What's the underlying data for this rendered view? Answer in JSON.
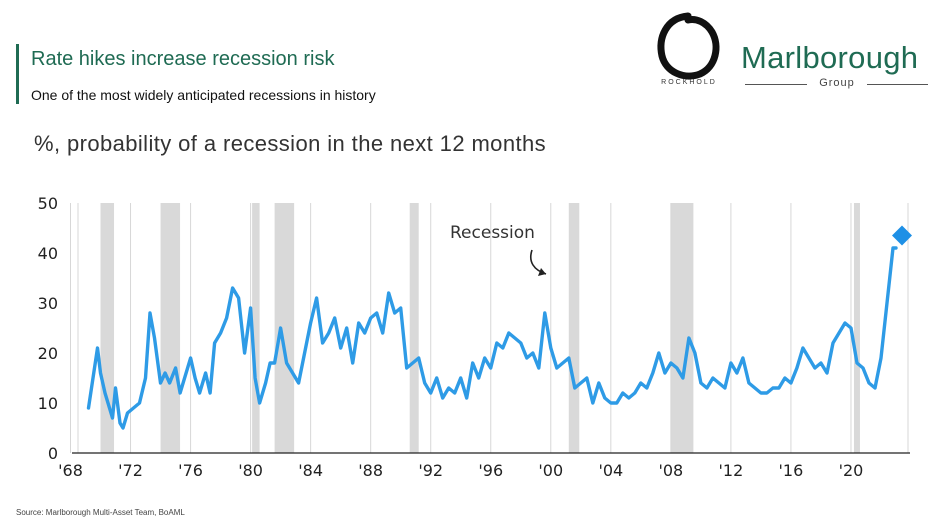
{
  "header": {
    "title": "Rate hikes increase recession risk",
    "subtitle": "One of the most widely anticipated recessions in history"
  },
  "logos": {
    "rockhold": "ROCKHOLD",
    "marlborough": "Marlborough",
    "marlborough_sub": "Group"
  },
  "source": "Source: Marlborough Multi-Asset Team, BoAML",
  "colors": {
    "line": "#2e9be6",
    "marker": "#1e90e6",
    "recession_band": "#d9d9d9",
    "brand_green": "#1f6b53"
  },
  "chart_data": {
    "type": "line",
    "title": "%, probability of a recession in the next 12 months",
    "xlabel": "",
    "ylabel": "",
    "xlim": [
      1968.5,
      2023.8
    ],
    "ylim": [
      0,
      50
    ],
    "yticks": [
      0,
      10,
      20,
      30,
      40,
      50
    ],
    "ytick_labels": [
      "0",
      "10",
      "20",
      "30",
      "40",
      "50"
    ],
    "xticks": [
      1968,
      1972,
      1976,
      1980,
      1984,
      1988,
      1992,
      1996,
      2000,
      2004,
      2008,
      2012,
      2016,
      2020
    ],
    "xtick_labels": [
      "'68",
      "'72",
      "'76",
      "'80",
      "'84",
      "'88",
      "'92",
      "'96",
      "'00",
      "'04",
      "'08",
      "'12",
      "'16",
      "'20"
    ],
    "grid": "vertical",
    "annotation": "Recession",
    "recessions": [
      [
        1970.0,
        1970.9
      ],
      [
        1974.0,
        1975.3
      ],
      [
        1980.1,
        1980.6
      ],
      [
        1981.6,
        1982.9
      ],
      [
        1990.6,
        1991.2
      ],
      [
        2001.2,
        2001.9
      ],
      [
        2008.0,
        2009.5
      ],
      [
        2020.2,
        2020.6
      ]
    ],
    "series": [
      {
        "type": "line",
        "x": [
          1969.2,
          1969.5,
          1969.8,
          1970.0,
          1970.3,
          1970.5,
          1970.8,
          1971.0,
          1971.3,
          1971.5,
          1971.8,
          1972.2,
          1972.6,
          1973.0,
          1973.3,
          1973.6,
          1974.0,
          1974.3,
          1974.6,
          1975.0,
          1975.3,
          1975.6,
          1976.0,
          1976.3,
          1976.6,
          1977.0,
          1977.3,
          1977.6,
          1978.0,
          1978.4,
          1978.8,
          1979.2,
          1979.6,
          1980.0,
          1980.3,
          1980.6,
          1981.0,
          1981.3,
          1981.6,
          1982.0,
          1982.4,
          1982.8,
          1983.2,
          1983.6,
          1984.0,
          1984.4,
          1984.8,
          1985.2,
          1985.6,
          1986.0,
          1986.4,
          1986.8,
          1987.2,
          1987.6,
          1988.0,
          1988.4,
          1988.8,
          1989.2,
          1989.6,
          1990.0,
          1990.4,
          1990.8,
          1991.2,
          1991.6,
          1992.0,
          1992.4,
          1992.8,
          1993.2,
          1993.6,
          1994.0,
          1994.4,
          1994.8,
          1995.2,
          1995.6,
          1996.0,
          1996.4,
          1996.8,
          1997.2,
          1997.6,
          1998.0,
          1998.4,
          1998.8,
          1999.2,
          1999.6,
          2000.0,
          2000.4,
          2000.8,
          2001.2,
          2001.6,
          2002.0,
          2002.4,
          2002.8,
          2003.2,
          2003.6,
          2004.0,
          2004.4,
          2004.8,
          2005.2,
          2005.6,
          2006.0,
          2006.4,
          2006.8,
          2007.2,
          2007.6,
          2008.0,
          2008.4,
          2008.8,
          2009.2,
          2009.6,
          2010.0,
          2010.4,
          2010.8,
          2011.2,
          2011.6,
          2012.0,
          2012.4,
          2012.8,
          2013.2,
          2013.6,
          2014.0,
          2014.4,
          2014.8,
          2015.2,
          2015.6,
          2016.0,
          2016.4,
          2016.8,
          2017.2,
          2017.6,
          2018.0,
          2018.4,
          2018.8,
          2019.2,
          2019.6,
          2020.0,
          2020.4,
          2020.8,
          2021.2,
          2021.6,
          2022.0,
          2022.4,
          2022.8,
          2023.0
        ],
        "values": [
          9,
          15,
          21,
          16,
          12,
          10,
          7,
          13,
          6,
          5,
          8,
          9,
          10,
          15,
          28,
          23,
          14,
          16,
          14,
          17,
          12,
          15,
          19,
          15,
          12,
          16,
          12,
          22,
          24,
          27,
          33,
          31,
          20,
          29,
          15,
          10,
          14,
          18,
          18,
          25,
          18,
          16,
          14,
          20,
          26,
          31,
          22,
          24,
          27,
          21,
          25,
          18,
          26,
          24,
          27,
          28,
          24,
          32,
          28,
          29,
          17,
          18,
          19,
          14,
          12,
          15,
          11,
          13,
          12,
          15,
          11,
          18,
          15,
          19,
          17,
          22,
          21,
          24,
          23,
          22,
          19,
          20,
          17,
          28,
          21,
          17,
          18,
          19,
          13,
          14,
          15,
          10,
          14,
          11,
          10,
          10,
          12,
          11,
          12,
          14,
          13,
          16,
          20,
          16,
          18,
          17,
          15,
          23,
          20,
          14,
          13,
          15,
          14,
          13,
          18,
          16,
          19,
          14,
          13,
          12,
          12,
          13,
          13,
          15,
          14,
          17,
          21,
          19,
          17,
          18,
          16,
          22,
          24,
          26,
          25,
          18,
          17,
          14,
          13,
          19,
          30,
          41,
          41
        ]
      },
      {
        "type": "marker",
        "x": [
          2023.4
        ],
        "values": [
          43.5
        ]
      }
    ]
  }
}
